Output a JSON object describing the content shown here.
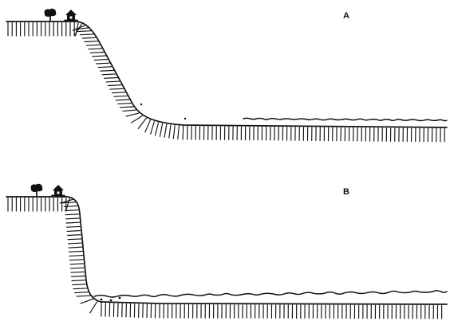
{
  "panels": {
    "a": {
      "label": "A"
    },
    "b": {
      "label": "B"
    }
  },
  "icons": {
    "tree": "tree-icon",
    "house": "house-icon"
  },
  "colors": {
    "ink": "#111111",
    "paper": "#ffffff"
  }
}
